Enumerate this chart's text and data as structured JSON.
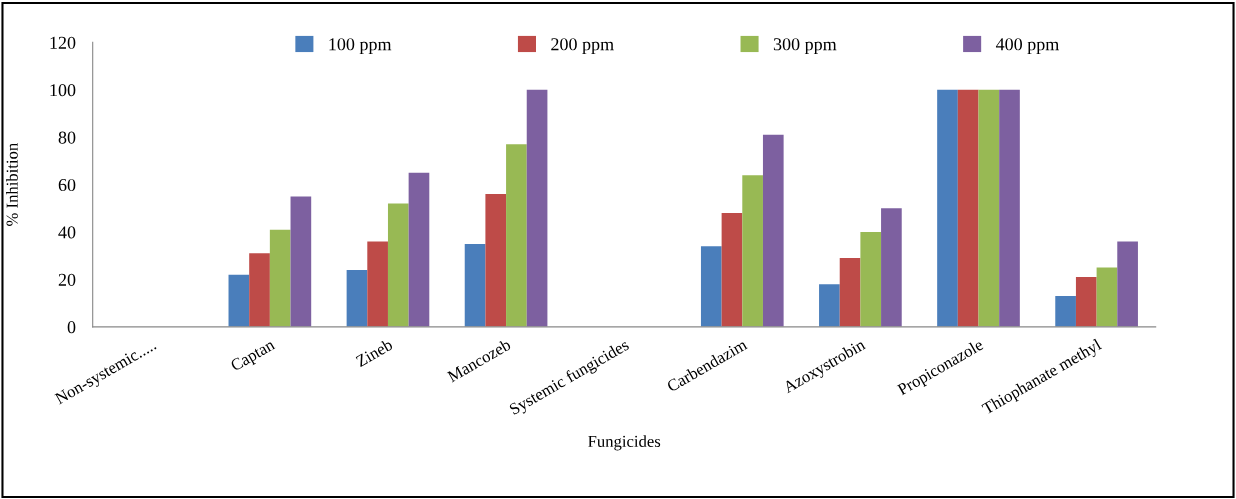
{
  "chart_data": {
    "type": "bar",
    "xlabel": "Fungicides",
    "ylabel": "% Inhibition",
    "categories": [
      "Non-systemic.....",
      "Captan",
      "Zineb",
      "Mancozeb",
      "Systemic fungicides",
      "Carbendazim",
      "Azoxystrobin",
      "Propiconazole",
      "Thiophanate methyl"
    ],
    "series": [
      {
        "name": "100 ppm",
        "color": "#4a7ebb",
        "values": [
          null,
          22,
          24,
          35,
          null,
          34,
          18,
          100,
          13
        ]
      },
      {
        "name": "200 ppm",
        "color": "#be4b48",
        "values": [
          null,
          31,
          36,
          56,
          null,
          48,
          29,
          100,
          21
        ]
      },
      {
        "name": "300 ppm",
        "color": "#98b954",
        "values": [
          null,
          41,
          52,
          77,
          null,
          64,
          40,
          100,
          25
        ]
      },
      {
        "name": "400 ppm",
        "color": "#7d60a0",
        "values": [
          null,
          55,
          65,
          100,
          null,
          81,
          50,
          100,
          36
        ]
      }
    ],
    "ylim": [
      0,
      120
    ],
    "yticks": [
      0,
      20,
      40,
      60,
      80,
      100,
      120
    ],
    "grid": false,
    "legend": "top"
  }
}
